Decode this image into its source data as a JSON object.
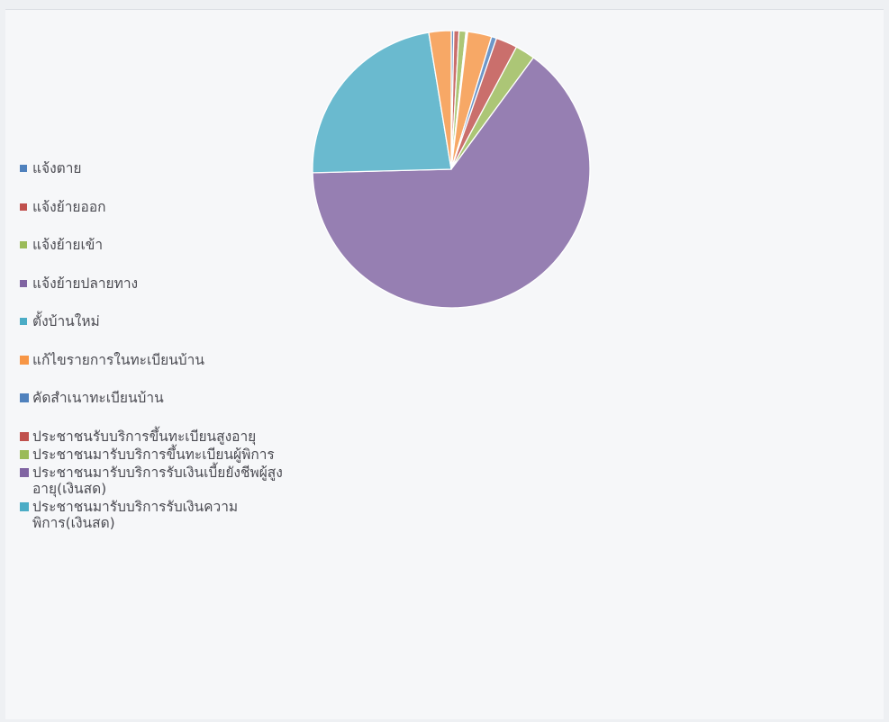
{
  "chart_data": {
    "type": "pie",
    "categories": [
      "แจ้งตาย",
      "แจ้งย้ายออก",
      "แจ้งย้ายเข้า",
      "แจ้งย้ายปลายทาง",
      "ตั้งบ้านใหม่",
      "แก้ไขรายการในทะเบียนบ้าน",
      "คัดสำเนาทะเบียนบ้าน",
      "ประชาชนรับบริการขึ้นทะเบียนสูงอายุ",
      "ประชาชนมารับบริการขึ้นทะเบียนผู้พิการ",
      "ประชาชนมารับบริการรับเงินเบี้ยยังชีพผู้สูงอายุ(เงินสด)",
      "ประชาชนมารับบริการรับเงินความพิการ(เงินสด)"
    ],
    "slices": [
      {
        "label": "แจ้งตาย",
        "value": 0.3,
        "color": "#4f81bd"
      },
      {
        "label": "แจ้งย้ายออก",
        "value": 0.6,
        "color": "#c0504d"
      },
      {
        "label": "แจ้งย้ายเข้า",
        "value": 0.8,
        "color": "#9bbb59"
      },
      {
        "label": "แจ้งย้ายปลายทาง",
        "value": 0.1,
        "color": "#8064a2"
      },
      {
        "label": "ตั้งบ้านใหม่",
        "value": 0.1,
        "color": "#4bacc6"
      },
      {
        "label": "แก้ไขรายการในทะเบียนบ้าน",
        "value": 2.8,
        "color": "#f79646"
      },
      {
        "label": "คัดสำเนาทะเบียนบ้าน",
        "value": 0.6,
        "color": "#4f81bd"
      },
      {
        "label": "ประชาชนรับบริการขึ้นทะเบียนสูงอายุ",
        "value": 2.5,
        "color": "#c0504d"
      },
      {
        "label": "ประชาชนมารับบริการขึ้นทะเบียนผู้พิการ",
        "value": 2.3,
        "color": "#9bbb59"
      },
      {
        "label": "ประชาชนมารับบริการรับเงินเบี้ยยังชีพผู้สูงอายุ(เงินสด)",
        "value": 64.5,
        "color": "#8064a2"
      },
      {
        "label": "ประชาชนมารับบริการรับเงินความพิการ(เงินสด)",
        "value": 22.8,
        "color": "#4bacc6"
      },
      {
        "label": "",
        "value": 2.6,
        "color": "#f79646"
      }
    ],
    "legend_position": "left"
  },
  "legend": [
    {
      "label": "แจ้งตาย",
      "color": "#4f81bd"
    },
    {
      "label": "แจ้งย้ายออก",
      "color": "#c0504d"
    },
    {
      "label": "แจ้งย้ายเข้า",
      "color": "#9bbb59"
    },
    {
      "label": "แจ้งย้ายปลายทาง",
      "color": "#8064a2"
    },
    {
      "label": "ตั้งบ้านใหม่",
      "color": "#4bacc6"
    },
    {
      "label": "แก้ไขรายการในทะเบียนบ้าน",
      "color": "#f79646"
    },
    {
      "label": "คัดสำเนาทะเบียนบ้าน",
      "color": "#4f81bd"
    },
    {
      "label": "ประชาชนรับบริการขึ้นทะเบียนสูงอายุ",
      "color": "#c0504d"
    },
    {
      "label": "ประชาชนมารับบริการขึ้นทะเบียนผู้พิการ",
      "color": "#9bbb59"
    },
    {
      "label": "ประชาชนมารับบริการรับเงินเบี้ยยังชีพผู้สูงอายุ(เงินสด)",
      "color": "#8064a2"
    },
    {
      "label": "ประชาชนมารับบริการรับเงินความพิการ(เงินสด)",
      "color": "#4bacc6"
    }
  ]
}
